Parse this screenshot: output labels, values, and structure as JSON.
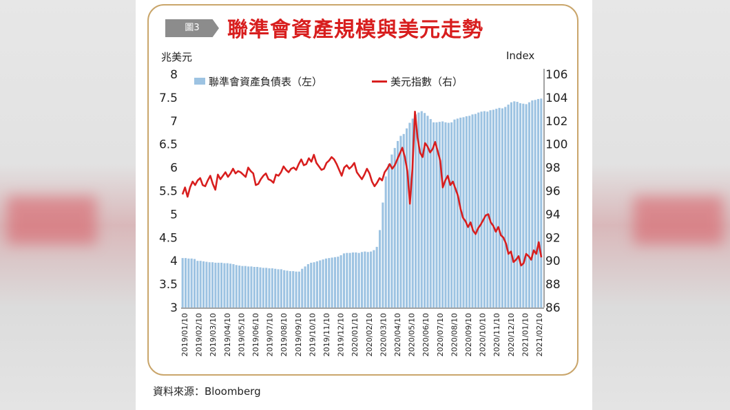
{
  "figure": {
    "tag": "圖3",
    "title": "聯準會資產規模與美元走勢",
    "left_unit": "兆美元",
    "right_unit": "Index",
    "source": "資料來源：Bloomberg"
  },
  "colors": {
    "bar": "#9dc3e2",
    "line": "#d81e1e",
    "title": "#d81e1e",
    "border": "#c9a56a",
    "tag_bg": "#8c8c8c"
  },
  "chart_data": {
    "type": "bar",
    "combo_with": "line",
    "legend": [
      "聯準會資產負債表（左）",
      "美元指數（右）"
    ],
    "legend_position": "top-left",
    "grid": false,
    "x_tick_labels": [
      "2019/01/10",
      "2019/02/10",
      "2019/03/10",
      "2019/04/10",
      "2019/05/10",
      "2019/06/10",
      "2019/07/10",
      "2019/08/10",
      "2019/09/10",
      "2019/10/10",
      "2019/11/10",
      "2019/12/10",
      "2020/01/10",
      "2020/02/10",
      "2020/03/10",
      "2020/04/10",
      "2020/05/10",
      "2020/06/10",
      "2020/07/10",
      "2020/08/10",
      "2020/09/10",
      "2020/10/10",
      "2020/11/10",
      "2020/12/10",
      "2021/01/10",
      "2021/02/10"
    ],
    "y_left": {
      "ticks": [
        "3",
        "3.5",
        "4",
        "4.5",
        "5",
        "5.5",
        "6",
        "6.5",
        "7",
        "7.5",
        "8"
      ],
      "ylim": [
        3,
        8
      ]
    },
    "y_right": {
      "ticks": [
        "86",
        "88",
        "90",
        "92",
        "94",
        "96",
        "98",
        "100",
        "102",
        "104",
        "106"
      ],
      "ylim": [
        86,
        106
      ]
    },
    "series": [
      {
        "name": "聯準會資產負債表（左）",
        "axis": "left",
        "type": "bar",
        "values": [
          4.06,
          4.06,
          4.05,
          4.05,
          4.04,
          4.0,
          4.0,
          3.99,
          3.98,
          3.97,
          3.97,
          3.96,
          3.96,
          3.96,
          3.95,
          3.95,
          3.94,
          3.93,
          3.91,
          3.9,
          3.89,
          3.89,
          3.88,
          3.88,
          3.87,
          3.87,
          3.86,
          3.85,
          3.85,
          3.84,
          3.84,
          3.83,
          3.82,
          3.82,
          3.8,
          3.79,
          3.78,
          3.78,
          3.77,
          3.77,
          3.83,
          3.88,
          3.93,
          3.96,
          3.97,
          3.99,
          4.01,
          4.03,
          4.05,
          4.06,
          4.07,
          4.08,
          4.09,
          4.12,
          4.16,
          4.17,
          4.17,
          4.18,
          4.18,
          4.17,
          4.19,
          4.2,
          4.19,
          4.2,
          4.23,
          4.3,
          4.66,
          5.25,
          5.81,
          6.08,
          6.28,
          6.42,
          6.57,
          6.68,
          6.72,
          6.84,
          6.96,
          7.05,
          7.14,
          7.18,
          7.21,
          7.17,
          7.11,
          7.04,
          6.97,
          6.97,
          6.98,
          6.99,
          6.97,
          6.96,
          6.97,
          7.03,
          7.05,
          7.07,
          7.08,
          7.1,
          7.11,
          7.14,
          7.15,
          7.18,
          7.2,
          7.21,
          7.2,
          7.23,
          7.24,
          7.26,
          7.28,
          7.27,
          7.3,
          7.35,
          7.4,
          7.42,
          7.41,
          7.38,
          7.37,
          7.36,
          7.4,
          7.44,
          7.45,
          7.47,
          7.48
        ]
      },
      {
        "name": "美元指數（右）",
        "axis": "right",
        "type": "line",
        "values": [
          95.7,
          96.3,
          95.5,
          96.3,
          96.8,
          96.5,
          96.9,
          97.1,
          96.5,
          96.4,
          96.9,
          97.3,
          96.6,
          96.1,
          97.4,
          97.0,
          97.3,
          97.6,
          97.2,
          97.5,
          97.9,
          97.5,
          97.7,
          97.6,
          97.4,
          97.2,
          98.0,
          97.7,
          97.5,
          96.5,
          96.6,
          97.0,
          97.3,
          97.5,
          97.0,
          96.9,
          96.7,
          97.4,
          97.3,
          97.6,
          98.1,
          97.8,
          97.6,
          97.9,
          98.0,
          97.8,
          98.3,
          98.7,
          98.2,
          98.3,
          98.8,
          98.5,
          99.1,
          98.4,
          98.1,
          97.8,
          97.9,
          98.4,
          98.6,
          98.9,
          98.7,
          98.3,
          97.8,
          97.3,
          98.0,
          98.2,
          97.9,
          98.1,
          98.4,
          97.6,
          97.3,
          97.0,
          97.4,
          97.9,
          97.5,
          96.8,
          96.4,
          96.7,
          97.1,
          96.9,
          97.6,
          97.9,
          98.3,
          97.9,
          98.2,
          98.7,
          99.2,
          99.7,
          98.9,
          97.7,
          94.9,
          97.9,
          102.8,
          100.6,
          99.3,
          98.9,
          100.1,
          99.8,
          99.3,
          99.6,
          100.2,
          99.4,
          98.6,
          96.3,
          96.9,
          97.3,
          96.5,
          96.8,
          96.2,
          95.6,
          94.5,
          93.7,
          93.4,
          92.9,
          93.3,
          92.6,
          92.3,
          92.8,
          93.1,
          93.5,
          93.9,
          94.0,
          93.3,
          93.0,
          92.5,
          92.9,
          92.2,
          92.0,
          91.5,
          90.6,
          90.8,
          89.9,
          90.1,
          90.4,
          89.6,
          89.8,
          90.6,
          90.4,
          90.1,
          90.9,
          90.6,
          91.6,
          90.3
        ]
      }
    ]
  }
}
